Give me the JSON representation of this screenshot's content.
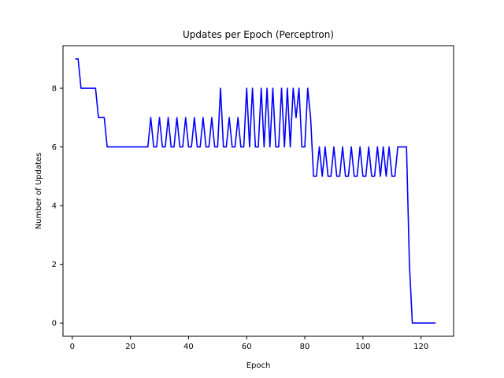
{
  "chart_data": {
    "type": "line",
    "title": "Updates per Epoch (Perceptron)",
    "xlabel": "Epoch",
    "ylabel": "Number of Updates",
    "xlim": [
      -3.2,
      131.2
    ],
    "ylim": [
      -0.45,
      9.45
    ],
    "xticks": [
      0,
      20,
      40,
      60,
      80,
      100,
      120
    ],
    "yticks": [
      0,
      2,
      4,
      6,
      8
    ],
    "grid": false,
    "series": [
      {
        "color": "#0000ff",
        "x": [
          1,
          2,
          3,
          4,
          5,
          6,
          7,
          8,
          9,
          10,
          11,
          12,
          13,
          14,
          15,
          16,
          17,
          18,
          19,
          20,
          21,
          22,
          23,
          24,
          25,
          26,
          27,
          28,
          29,
          30,
          31,
          32,
          33,
          34,
          35,
          36,
          37,
          38,
          39,
          40,
          41,
          42,
          43,
          44,
          45,
          46,
          47,
          48,
          49,
          50,
          51,
          52,
          53,
          54,
          55,
          56,
          57,
          58,
          59,
          60,
          61,
          62,
          63,
          64,
          65,
          66,
          67,
          68,
          69,
          70,
          71,
          72,
          73,
          74,
          75,
          76,
          77,
          78,
          79,
          80,
          81,
          82,
          83,
          84,
          85,
          86,
          87,
          88,
          89,
          90,
          91,
          92,
          93,
          94,
          95,
          96,
          97,
          98,
          99,
          100,
          101,
          102,
          103,
          104,
          105,
          106,
          107,
          108,
          109,
          110,
          111,
          112,
          113,
          114,
          115,
          116,
          117,
          118,
          119,
          120,
          121,
          122,
          123,
          124,
          125
        ],
        "y": [
          9,
          9,
          8,
          8,
          8,
          8,
          8,
          8,
          7,
          7,
          7,
          6,
          6,
          6,
          6,
          6,
          6,
          6,
          6,
          6,
          6,
          6,
          6,
          6,
          6,
          6,
          7,
          6,
          6,
          7,
          6,
          6,
          7,
          6,
          6,
          7,
          6,
          6,
          7,
          6,
          6,
          7,
          6,
          6,
          7,
          6,
          6,
          7,
          6,
          6,
          8,
          6,
          6,
          7,
          6,
          6,
          7,
          6,
          6,
          8,
          6,
          8,
          6,
          6,
          8,
          6,
          8,
          6,
          8,
          6,
          6,
          8,
          6,
          8,
          6,
          8,
          7,
          8,
          6,
          6,
          8,
          7,
          5,
          5,
          6,
          5,
          6,
          5,
          5,
          6,
          5,
          5,
          6,
          5,
          5,
          6,
          5,
          5,
          6,
          5,
          5,
          6,
          5,
          5,
          6,
          5,
          6,
          5,
          6,
          5,
          5,
          6,
          6,
          6,
          6,
          2,
          0,
          0,
          0,
          0,
          0,
          0,
          0,
          0,
          0
        ]
      }
    ]
  }
}
